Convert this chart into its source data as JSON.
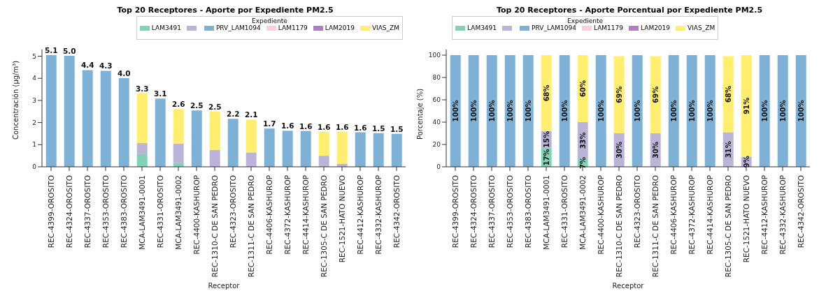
{
  "chart_data": [
    {
      "type": "bar",
      "title": "Top 20 Receptores - Aporte por Expediente PM2.5",
      "xlabel": "Receptor",
      "ylabel": "Concentración (µg/m³)",
      "legend_title": "Expediente",
      "stacked": true,
      "legend": "top right",
      "categories": [
        "REC-4399-OROSITO",
        "REC-4324-OROSITO",
        "REC-4337-OROSITO",
        "REC-4353-OROSITO",
        "REC-4383-OROSITO",
        "MCA-LAM3491-0001",
        "REC-4331-OROSITO",
        "MCA-LAM3491-0002",
        "REC-4400-KASHUROP",
        "REC-1310-C DE SAN PEDRO",
        "REC-4323-OROSITO",
        "REC-1311-C DE SAN PEDRO",
        "REC-4406-KASHUROP",
        "REC-4372-KASHUROP",
        "REC-4414-KASHUROP",
        "REC-1305-C DE SAN PEDRO",
        "REC-1521-HATO NUEVO",
        "REC-4412-KASHUROP",
        "REC-4332-KASHUROP",
        "REC-4342-OROSITO"
      ],
      "ylim": [
        0,
        5.3
      ],
      "yticks": [
        0,
        1,
        2,
        3,
        4,
        5
      ],
      "series": [
        {
          "name": "LAM3491",
          "color": "#80d3b8",
          "values": [
            0,
            0,
            0,
            0,
            0,
            0.57,
            0,
            0.18,
            0,
            0,
            0,
            0,
            0,
            0,
            0,
            0,
            0,
            0,
            0,
            0
          ]
        },
        {
          "color": "#bcb3d8",
          "values": [
            0,
            0,
            0,
            0,
            0,
            0.5,
            0,
            0.86,
            0,
            0.76,
            0,
            0.65,
            0,
            0,
            0,
            0.5,
            0.14,
            0,
            0,
            0
          ]
        },
        {
          "name": "PRV_LAM1094",
          "color": "#7fb1d6",
          "values": [
            5.05,
            5.02,
            4.37,
            4.34,
            4.01,
            0,
            3.08,
            0,
            2.55,
            0,
            2.17,
            0,
            1.73,
            1.63,
            1.62,
            0,
            0,
            1.56,
            1.52,
            1.49
          ]
        },
        {
          "name": "LAM1179",
          "color": "#fbcfe0",
          "values": [
            0,
            0,
            0,
            0,
            0,
            0,
            0,
            0,
            0,
            0,
            0,
            0,
            0,
            0,
            0,
            0,
            0,
            0,
            0,
            0
          ]
        },
        {
          "name": "LAM2019",
          "color": "#b07cc6",
          "values": [
            0,
            0,
            0,
            0,
            0,
            0,
            0,
            0,
            0,
            0,
            0,
            0,
            0,
            0,
            0,
            0,
            0,
            0,
            0,
            0
          ]
        },
        {
          "name": "VIAS_ZM",
          "color": "#ffee6f",
          "values": [
            0,
            0,
            0,
            0,
            0,
            2.25,
            0,
            1.57,
            0,
            1.73,
            0,
            1.48,
            0,
            0,
            0,
            1.08,
            1.45,
            0,
            0,
            0
          ]
        }
      ],
      "totals": [
        "5.1",
        "5.0",
        "4.4",
        "4.3",
        "4.0",
        "3.3",
        "3.1",
        "2.6",
        "2.5",
        "2.5",
        "2.2",
        "2.1",
        "1.7",
        "1.6",
        "1.6",
        "1.6",
        "1.6",
        "1.6",
        "1.5",
        "1.5"
      ]
    },
    {
      "type": "bar",
      "title": "Top 20 Receptores - Aporte Porcentual por Expediente PM2.5",
      "xlabel": "Receptor",
      "ylabel": "Porcentaje (%)",
      "legend_title": "Expediente",
      "stacked": true,
      "legend": "top left",
      "categories": [
        "REC-4399-OROSITO",
        "REC-4324-OROSITO",
        "REC-4337-OROSITO",
        "REC-4353-OROSITO",
        "REC-4383-OROSITO",
        "MCA-LAM3491-0001",
        "REC-4331-OROSITO",
        "MCA-LAM3491-0002",
        "REC-4400-KASHUROP",
        "REC-1310-C DE SAN PEDRO",
        "REC-4323-OROSITO",
        "REC-1311-C DE SAN PEDRO",
        "REC-4406-KASHUROP",
        "REC-4372-KASHUROP",
        "REC-4414-KASHUROP",
        "REC-1305-C DE SAN PEDRO",
        "REC-1521-HATO NUEVO",
        "REC-4412-KASHUROP",
        "REC-4332-KASHUROP",
        "REC-4342-OROSITO"
      ],
      "ylim": [
        0,
        105
      ],
      "yticks": [
        0,
        20,
        40,
        60,
        80,
        100
      ],
      "series": [
        {
          "name": "LAM3491",
          "color": "#80d3b8",
          "values": [
            0,
            0,
            0,
            0,
            0,
            17,
            0,
            7,
            0,
            0,
            0,
            0,
            0,
            0,
            0,
            0,
            0,
            0,
            0,
            0
          ],
          "value_labels": [
            null,
            null,
            null,
            null,
            null,
            "17%",
            null,
            "7%",
            null,
            null,
            null,
            null,
            null,
            null,
            null,
            null,
            null,
            null,
            null,
            null
          ]
        },
        {
          "color": "#bcb3d8",
          "values": [
            0,
            0,
            0,
            0,
            0,
            15,
            0,
            33,
            0,
            30,
            0,
            30,
            0,
            0,
            0,
            31,
            9,
            0,
            0,
            0
          ],
          "value_labels": [
            null,
            null,
            null,
            null,
            null,
            "15%",
            null,
            "33%",
            null,
            "30%",
            null,
            "30%",
            null,
            null,
            null,
            "31%",
            "9%",
            null,
            null,
            null
          ]
        },
        {
          "name": "PRV_LAM1094",
          "color": "#7fb1d6",
          "values": [
            100,
            100,
            100,
            100,
            100,
            0,
            100,
            0,
            100,
            0,
            100,
            0,
            100,
            100,
            100,
            0,
            0,
            100,
            100,
            100
          ],
          "value_labels": [
            "100%",
            "100%",
            "100%",
            "100%",
            "100%",
            null,
            "100%",
            null,
            "100%",
            null,
            "100%",
            null,
            "100%",
            "100%",
            "100%",
            null,
            null,
            "100%",
            "100%",
            "100%"
          ]
        },
        {
          "name": "LAM1179",
          "color": "#fbcfe0",
          "values": [
            0,
            0,
            0,
            0,
            0,
            0,
            0,
            0,
            0,
            0,
            0,
            0,
            0,
            0,
            0,
            0,
            0,
            0,
            0,
            0
          ]
        },
        {
          "name": "LAM2019",
          "color": "#b07cc6",
          "values": [
            0,
            0,
            0,
            0,
            0,
            0,
            0,
            0,
            0,
            0,
            0,
            0,
            0,
            0,
            0,
            0,
            0,
            0,
            0,
            0
          ]
        },
        {
          "name": "VIAS_ZM",
          "color": "#ffee6f",
          "values": [
            0,
            0,
            0,
            0,
            0,
            68,
            0,
            60,
            0,
            69,
            0,
            69,
            0,
            0,
            0,
            68,
            91,
            0,
            0,
            0
          ],
          "value_labels": [
            null,
            null,
            null,
            null,
            null,
            "68%",
            null,
            "60%",
            null,
            "69%",
            null,
            "69%",
            null,
            null,
            null,
            "68%",
            "91%",
            null,
            null,
            null
          ]
        }
      ]
    }
  ]
}
